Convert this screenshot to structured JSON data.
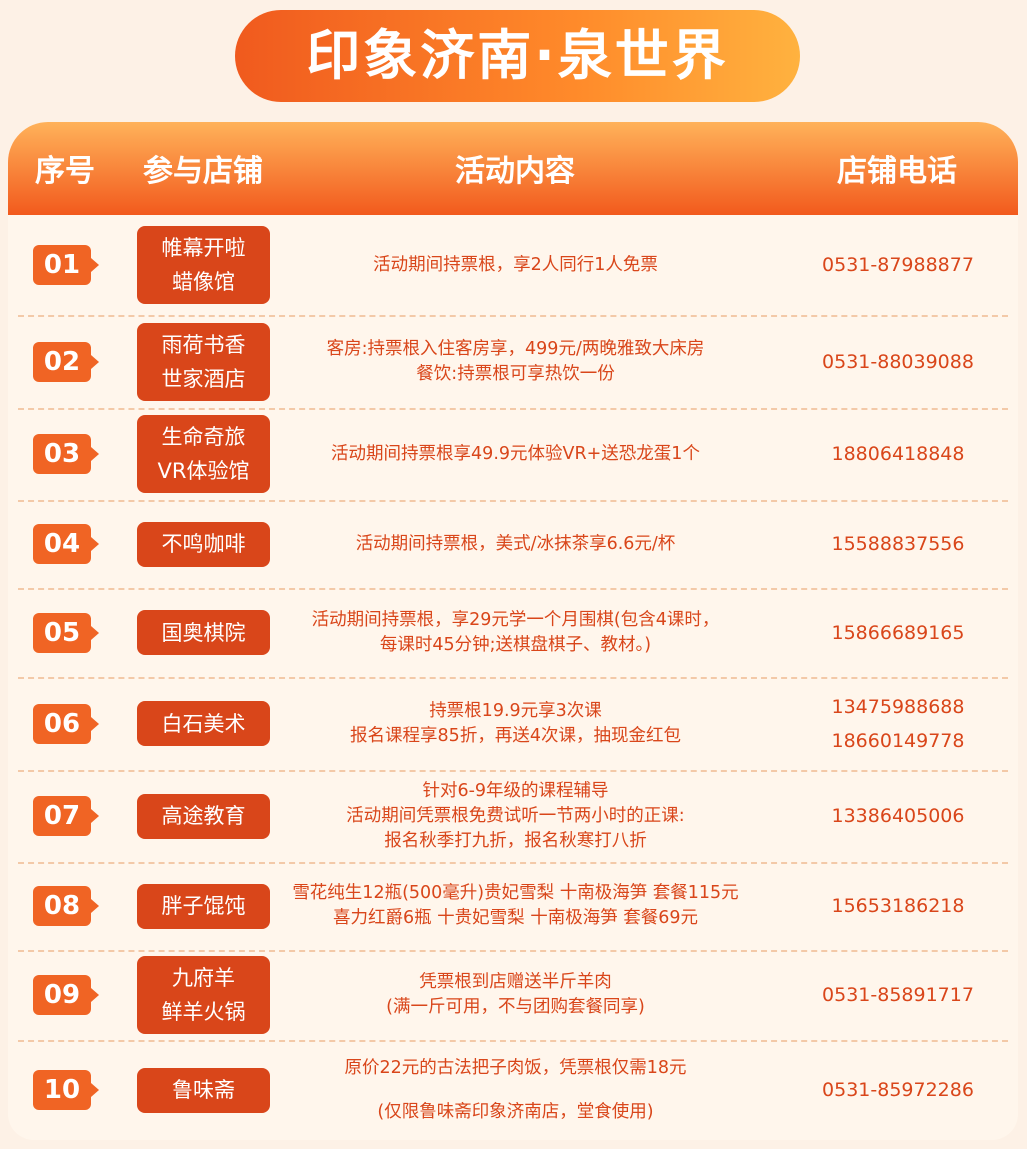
{
  "title": "印象济南·泉世界",
  "table": {
    "header": [
      "序号",
      "参与店铺",
      "活动内容",
      "店铺电话"
    ],
    "rows": [
      {
        "no": "01",
        "store": [
          "帷幕开啦",
          "蜡像馆"
        ],
        "content": [
          "活动期间持票根，享2人同行1人免票"
        ],
        "phone": [
          "0531-87988877"
        ]
      },
      {
        "no": "02",
        "store": [
          "雨荷书香",
          "世家酒店"
        ],
        "content": [
          "客房:持票根入住客房享，499元/两晚雅致大床房",
          "餐饮:持票根可享热饮一份"
        ],
        "phone": [
          "0531-88039088"
        ]
      },
      {
        "no": "03",
        "store": [
          "生命奇旅",
          "VR体验馆"
        ],
        "content": [
          "活动期间持票根享49.9元体验VR+送恐龙蛋1个"
        ],
        "phone": [
          "18806418848"
        ]
      },
      {
        "no": "04",
        "store": [
          "不鸣咖啡"
        ],
        "content": [
          "活动期间持票根，美式/冰抹茶享6.6元/杯"
        ],
        "phone": [
          "15588837556"
        ]
      },
      {
        "no": "05",
        "store": [
          "国奥棋院"
        ],
        "content": [
          "活动期间持票根，享29元学一个月围棋(包含4课时，",
          "每课时45分钟;送棋盘棋子、教材。)"
        ],
        "phone": [
          "15866689165"
        ]
      },
      {
        "no": "06",
        "store": [
          "白石美术"
        ],
        "content": [
          "持票根19.9元享3次课",
          "报名课程享85折，再送4次课，抽现金红包"
        ],
        "phone": [
          "13475988688",
          "18660149778"
        ]
      },
      {
        "no": "07",
        "store": [
          "高途教育"
        ],
        "content": [
          "针对6-9年级的课程辅导",
          "活动期间凭票根免费试听一节两小时的正课:",
          "报名秋季打九折，报名秋寒打八折"
        ],
        "phone": [
          "13386405006"
        ]
      },
      {
        "no": "08",
        "store": [
          "胖子馄饨"
        ],
        "content": [
          "雪花纯生12瓶(500毫升)贵妃雪梨 十南极海笋 套餐115元",
          "喜力红爵6瓶 十贵妃雪梨 十南极海笋 套餐69元"
        ],
        "phone": [
          "15653186218"
        ]
      },
      {
        "no": "09",
        "store": [
          "九府羊",
          "鲜羊火锅"
        ],
        "content": [
          "凭票根到店赠送半斤羊肉",
          "(满一斤可用，不与团购套餐同享)"
        ],
        "phone": [
          "0531-85891717"
        ]
      },
      {
        "no": "10",
        "store": [
          "鲁味斋"
        ],
        "content": [
          "原价22元的古法把子肉饭，凭票根仅需18元",
          "(仅限鲁味斋印象济南店，堂食使用)"
        ],
        "phone": [
          "0531-85972286"
        ]
      }
    ]
  }
}
